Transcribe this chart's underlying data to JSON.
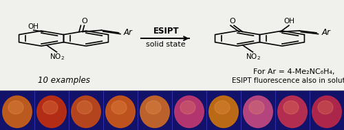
{
  "background_color": "#f0f0ec",
  "arrow_text_bold": "ESIPT",
  "arrow_text_normal": "solid state",
  "label_left": "10 examples",
  "label_right_line1": "For Ar = 4-Me₂NC₆H₄,",
  "label_right_line2": "ESIPT fluorescence also in solution",
  "bottom_bg": "#12126a",
  "photo_panels": 10,
  "panel_colors_main": [
    "#c86018",
    "#c03010",
    "#c04818",
    "#cc5818",
    "#c86828",
    "#c03870",
    "#c87010",
    "#c04880",
    "#c03050",
    "#b82848"
  ],
  "fig_width": 5.0,
  "fig_height": 1.9,
  "dpi": 100
}
